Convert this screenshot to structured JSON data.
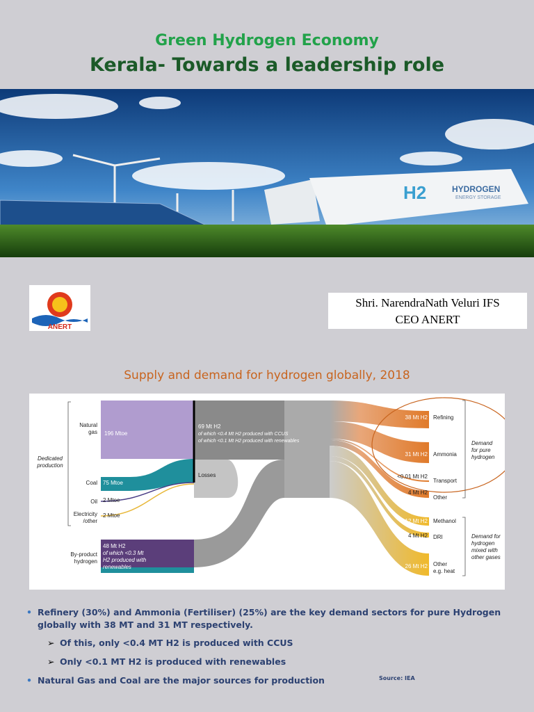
{
  "header": {
    "subtitle": "Green Hydrogen Economy",
    "title": "Kerala- Towards a leadership role"
  },
  "hero": {
    "badge": "H2",
    "label": "HYDROGEN",
    "sublabel": "ENERGY STORAGE"
  },
  "logo": {
    "text": "ANERT"
  },
  "presenter": {
    "name": "Shri. NarendraNath Veluri IFS",
    "role": "CEO ANERT"
  },
  "diagram": {
    "title": "Supply and demand for hydrogen globally, 2018",
    "group_left": [
      "Dedicated",
      "production"
    ],
    "sources": [
      {
        "label": [
          "Natural",
          "gas"
        ],
        "value": "196 Mtoe"
      },
      {
        "label": [
          "Coal"
        ],
        "value": "75 Mtoe"
      },
      {
        "label": [
          "Oil"
        ],
        "value": "2 Mtoe"
      },
      {
        "label": [
          "Electricity",
          "/other"
        ],
        "value": "2 Mtoe"
      }
    ],
    "byproduct": {
      "label": [
        "By-product",
        "hydrogen"
      ],
      "value": "48 Mt H2",
      "note": [
        "of which <0.3 Mt",
        "H2 produced with",
        "renewables"
      ]
    },
    "hub": {
      "value": "69 Mt H2",
      "notes": [
        "of which <0.4 Mt H2 produced with CCUS",
        "of which <0.1 Mt H2 produced with renewables"
      ]
    },
    "losses": "Losses",
    "demands": [
      {
        "value": "38 Mt H2",
        "label": [
          "Refining"
        ]
      },
      {
        "value": "31 Mt H2",
        "label": [
          "Ammonia"
        ]
      },
      {
        "value": "<0.01 Mt H2",
        "label": [
          "Transport"
        ]
      },
      {
        "value": "4 Mt H2",
        "label": [
          "Other"
        ]
      },
      {
        "value": "12 Mt H2",
        "label": [
          "Methanol"
        ]
      },
      {
        "value": "4 Mt H2",
        "label": [
          "DRI"
        ]
      },
      {
        "value": "26 Mt H2",
        "label": [
          "Other",
          "e.g. heat"
        ]
      }
    ],
    "groups_right": [
      [
        "Demand",
        "for pure",
        "hydrogen"
      ],
      [
        "Demand for",
        "hydrogen",
        "mixed with",
        "other gases"
      ]
    ]
  },
  "bullets": [
    {
      "text": "Refinery (30%) and Ammonia (Fertiliser) (25%) are the key demand sectors for pure Hydrogen globally with 38 MT and 31 MT respectively.",
      "sub": [
        "Of this, only <0.4 MT H2 is produced with CCUS",
        "Only <0.1 MT H2 is produced with renewables"
      ]
    },
    {
      "text": "Natural Gas and Coal are the major sources for production"
    }
  ],
  "source": "Source: IEA"
}
